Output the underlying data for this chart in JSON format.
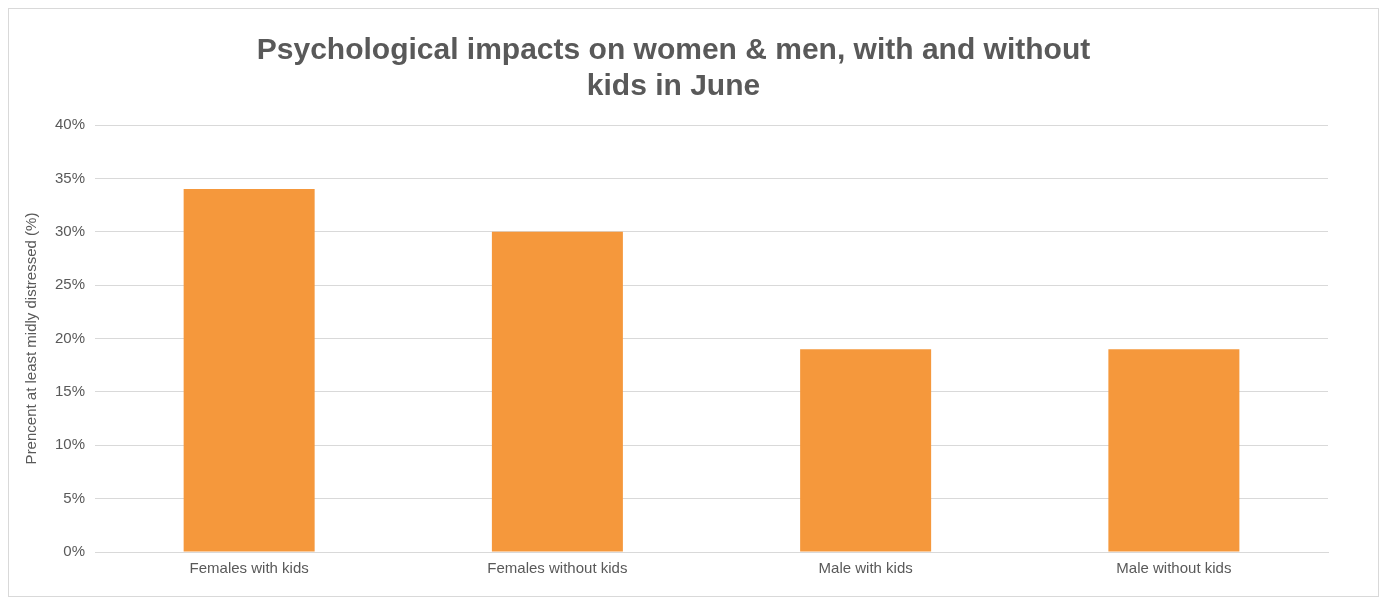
{
  "chart_data": {
    "type": "bar",
    "title": "Psychological impacts on women & men, with and without kids in June",
    "ylabel": "Prencent at least midly distressed (%)",
    "categories": [
      "Females with kids",
      "Females without kids",
      "Male with kids",
      "Male without kids"
    ],
    "values": [
      34,
      30,
      19,
      19
    ],
    "color": "#f5983c",
    "ylim": [
      0,
      40
    ],
    "yticks": [
      {
        "value": 0,
        "label": "0%"
      },
      {
        "value": 5,
        "label": "5%"
      },
      {
        "value": 10,
        "label": "10%"
      },
      {
        "value": 15,
        "label": "15%"
      },
      {
        "value": 20,
        "label": "20%"
      },
      {
        "value": 25,
        "label": "25%"
      },
      {
        "value": 30,
        "label": "30%"
      },
      {
        "value": 35,
        "label": "35%"
      },
      {
        "value": 40,
        "label": "40%"
      }
    ],
    "grid": "y",
    "legend": false
  }
}
